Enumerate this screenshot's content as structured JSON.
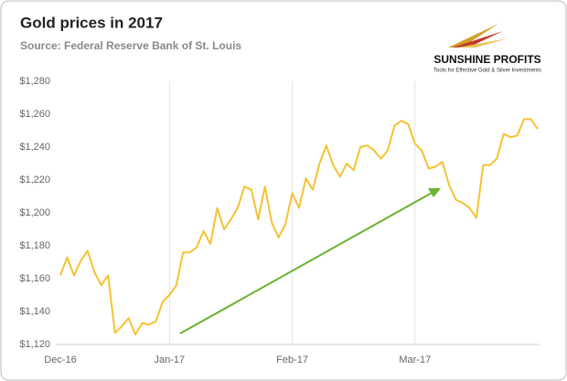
{
  "chart_data": {
    "type": "line",
    "title": "Gold prices in 2017",
    "subtitle": "Source: Federal Reserve Bank of St. Louis",
    "logo": {
      "name": "SUNSHINE PROFITS",
      "tagline": "Tools for Effective Gold & Silver Investments"
    },
    "categories": [
      "Dec-16",
      null,
      null,
      null,
      null,
      null,
      null,
      null,
      null,
      null,
      null,
      null,
      null,
      null,
      null,
      null,
      "Jan-17",
      null,
      null,
      null,
      null,
      null,
      null,
      null,
      null,
      null,
      null,
      null,
      null,
      null,
      null,
      null,
      null,
      null,
      "Feb-17",
      null,
      null,
      null,
      null,
      null,
      null,
      null,
      null,
      null,
      null,
      null,
      null,
      null,
      null,
      null,
      null,
      null,
      "Mar-17",
      null,
      null,
      null,
      null,
      null,
      null,
      null,
      null,
      null,
      null,
      null,
      null,
      null,
      null,
      null,
      null,
      null,
      null
    ],
    "series": [
      {
        "name": "Gold price",
        "color": "#f6c232",
        "values": [
          1162,
          1173,
          1162,
          1171,
          1177,
          1164,
          1156,
          1162,
          1127,
          1131,
          1136,
          1126,
          1133,
          1132,
          1134,
          1146,
          1150,
          1156,
          1176,
          1176,
          1179,
          1189,
          1181,
          1203,
          1190,
          1196,
          1203,
          1216,
          1214,
          1196,
          1216,
          1194,
          1185,
          1193,
          1212,
          1203,
          1221,
          1214,
          1230,
          1241,
          1229,
          1222,
          1230,
          1226,
          1240,
          1241,
          1238,
          1233,
          1238,
          1253,
          1256,
          1254,
          1242,
          1238,
          1227,
          1228,
          1231,
          1217,
          1208,
          1206,
          1203,
          1197,
          1229,
          1229,
          1233,
          1248,
          1246,
          1247,
          1257,
          1257,
          1251
        ]
      }
    ],
    "ylim": [
      1120,
      1280
    ],
    "yticks": [
      {
        "value": 1120,
        "label": "$1,120"
      },
      {
        "value": 1140,
        "label": "$1,140"
      },
      {
        "value": 1160,
        "label": "$1,160"
      },
      {
        "value": 1180,
        "label": "$1,180"
      },
      {
        "value": 1200,
        "label": "$1,200"
      },
      {
        "value": 1220,
        "label": "$1,220"
      },
      {
        "value": 1240,
        "label": "$1,240"
      },
      {
        "value": 1260,
        "label": "$1,260"
      },
      {
        "value": 1280,
        "label": "$1,280"
      }
    ],
    "grid": true
  }
}
